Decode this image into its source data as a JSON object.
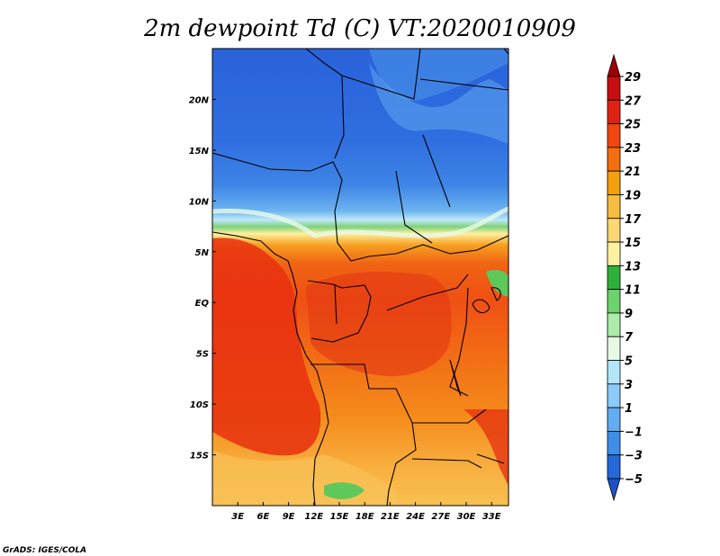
{
  "chart_data": {
    "type": "heatmap",
    "title": "2m dewpoint Td (C) VT:2020010909",
    "variable": "2m dewpoint Td",
    "units": "C",
    "valid_time": "2020010909",
    "x_axis": {
      "range_deg": [
        0,
        35
      ],
      "ticks": [
        {
          "value": 3,
          "label": "3E"
        },
        {
          "value": 6,
          "label": "6E"
        },
        {
          "value": 9,
          "label": "9E"
        },
        {
          "value": 12,
          "label": "12E"
        },
        {
          "value": 15,
          "label": "15E"
        },
        {
          "value": 18,
          "label": "18E"
        },
        {
          "value": 21,
          "label": "21E"
        },
        {
          "value": 24,
          "label": "24E"
        },
        {
          "value": 27,
          "label": "27E"
        },
        {
          "value": 30,
          "label": "30E"
        },
        {
          "value": 33,
          "label": "33E"
        }
      ]
    },
    "y_axis": {
      "range_deg": [
        -20,
        25
      ],
      "ticks": [
        {
          "value": 20,
          "label": "20N"
        },
        {
          "value": 15,
          "label": "15N"
        },
        {
          "value": 10,
          "label": "10N"
        },
        {
          "value": 5,
          "label": "5N"
        },
        {
          "value": 0,
          "label": "EQ"
        },
        {
          "value": -5,
          "label": "5S"
        },
        {
          "value": -10,
          "label": "10S"
        },
        {
          "value": -15,
          "label": "15S"
        }
      ]
    },
    "colorbar": {
      "levels": [
        "29",
        "27",
        "25",
        "23",
        "21",
        "19",
        "17",
        "15",
        "13",
        "11",
        "9",
        "7",
        "5",
        "3",
        "1",
        "−1",
        "−3",
        "−5"
      ],
      "colors": [
        "#a00000",
        "#c80f0f",
        "#e02214",
        "#f2460f",
        "#f56e0f",
        "#f5a00f",
        "#f8bc40",
        "#fcd873",
        "#fef2a2",
        "#2eb03c",
        "#6ed26e",
        "#acebac",
        "#e6fae6",
        "#b4e6fa",
        "#8ccaf8",
        "#64acf2",
        "#3e8ee8",
        "#2468dc",
        "#1e50c8"
      ]
    },
    "credit": "GrADS: IGES/COLA"
  }
}
